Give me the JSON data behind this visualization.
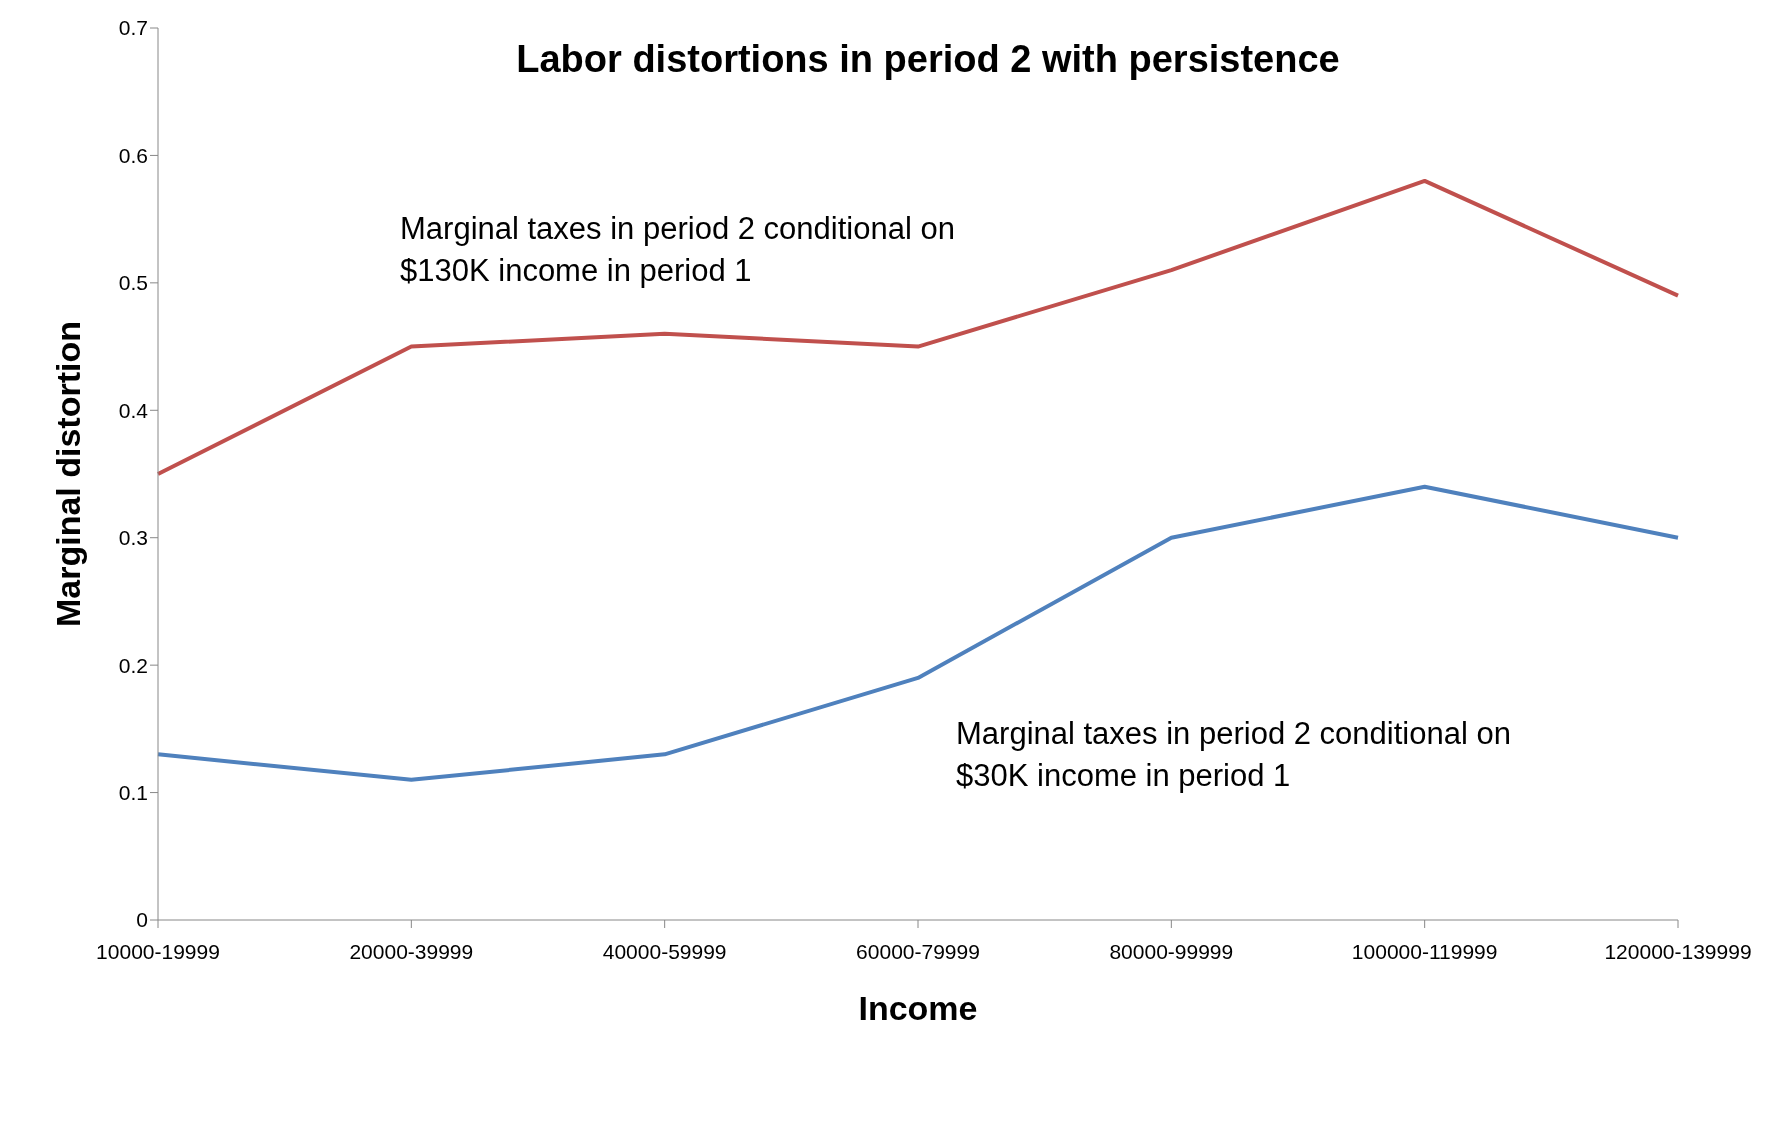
{
  "chart_data": {
    "type": "line",
    "title": "Labor distortions in period 2 with persistence",
    "xlabel": "Income",
    "ylabel": "Marginal distortion",
    "categories": [
      "10000-19999",
      "20000-39999",
      "40000-59999",
      "60000-79999",
      "80000-99999",
      "100000-119999",
      "120000-139999"
    ],
    "series": [
      {
        "name": "Marginal taxes in period 2 conditional on $130K income in period 1",
        "color": "#c0504d",
        "values": [
          0.35,
          0.45,
          0.46,
          0.45,
          0.51,
          0.58,
          0.49
        ]
      },
      {
        "name": "Marginal taxes in period 2 conditional on $30K income in period 1",
        "color": "#4f81bd",
        "values": [
          0.13,
          0.11,
          0.13,
          0.19,
          0.3,
          0.34,
          0.3
        ]
      }
    ],
    "ylim": [
      0,
      0.7
    ],
    "yticks": [
      0,
      0.1,
      0.2,
      0.3,
      0.4,
      0.5,
      0.6,
      0.7
    ],
    "grid": false,
    "legend": false,
    "marker": "none",
    "line_style": "solid"
  }
}
